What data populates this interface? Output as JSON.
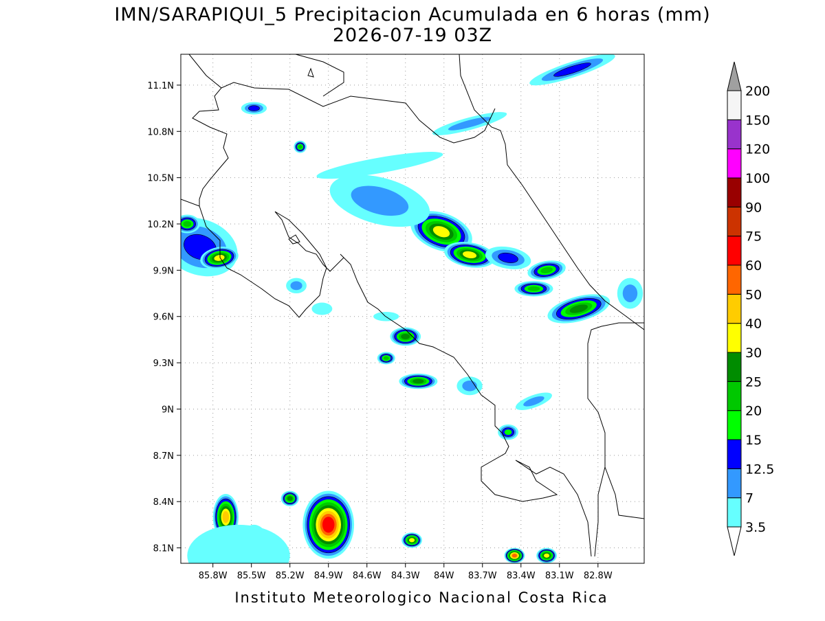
{
  "chart_data": {
    "type": "map",
    "title": "IMN/SARAPIQUI_5 Precipitacion Acumulada en 6 horas (mm)",
    "subtitle": "2026-07-19 03Z",
    "footer": "Instituto Meteorologico Nacional Costa Rica",
    "xlim": [
      -86.05,
      -82.44
    ],
    "ylim": [
      8.0,
      11.3
    ],
    "xticks": [
      {
        "value": -85.8,
        "label": "85.8W"
      },
      {
        "value": -85.5,
        "label": "85.5W"
      },
      {
        "value": -85.2,
        "label": "85.2W"
      },
      {
        "value": -84.9,
        "label": "84.9W"
      },
      {
        "value": -84.6,
        "label": "84.6W"
      },
      {
        "value": -84.3,
        "label": "84.3W"
      },
      {
        "value": -84.0,
        "label": "84W"
      },
      {
        "value": -83.7,
        "label": "83.7W"
      },
      {
        "value": -83.4,
        "label": "83.4W"
      },
      {
        "value": -83.1,
        "label": "83.1W"
      },
      {
        "value": -82.8,
        "label": "82.8W"
      }
    ],
    "yticks": [
      {
        "value": 8.1,
        "label": "8.1N"
      },
      {
        "value": 8.4,
        "label": "8.4N"
      },
      {
        "value": 8.7,
        "label": "8.7N"
      },
      {
        "value": 9.0,
        "label": "9N"
      },
      {
        "value": 9.3,
        "label": "9.3N"
      },
      {
        "value": 9.6,
        "label": "9.6N"
      },
      {
        "value": 9.9,
        "label": "9.9N"
      },
      {
        "value": 10.2,
        "label": "10.2N"
      },
      {
        "value": 10.5,
        "label": "10.5N"
      },
      {
        "value": 10.8,
        "label": "10.8N"
      },
      {
        "value": 11.1,
        "label": "11.1N"
      }
    ],
    "grid": true,
    "colorbar": {
      "levels": [
        3.5,
        7,
        12.5,
        15,
        20,
        25,
        30,
        40,
        50,
        60,
        75,
        90,
        100,
        120,
        150,
        200
      ],
      "colors": [
        "#66ffff",
        "#3399ff",
        "#0000ff",
        "#00ff00",
        "#00c800",
        "#008c00",
        "#ffff00",
        "#ffcc00",
        "#ff6600",
        "#ff0000",
        "#cc3300",
        "#990000",
        "#ff00ff",
        "#9933cc",
        "#f5f5f5"
      ],
      "under_color": "#ffffff",
      "over_color": "#a0a0a0"
    }
  }
}
